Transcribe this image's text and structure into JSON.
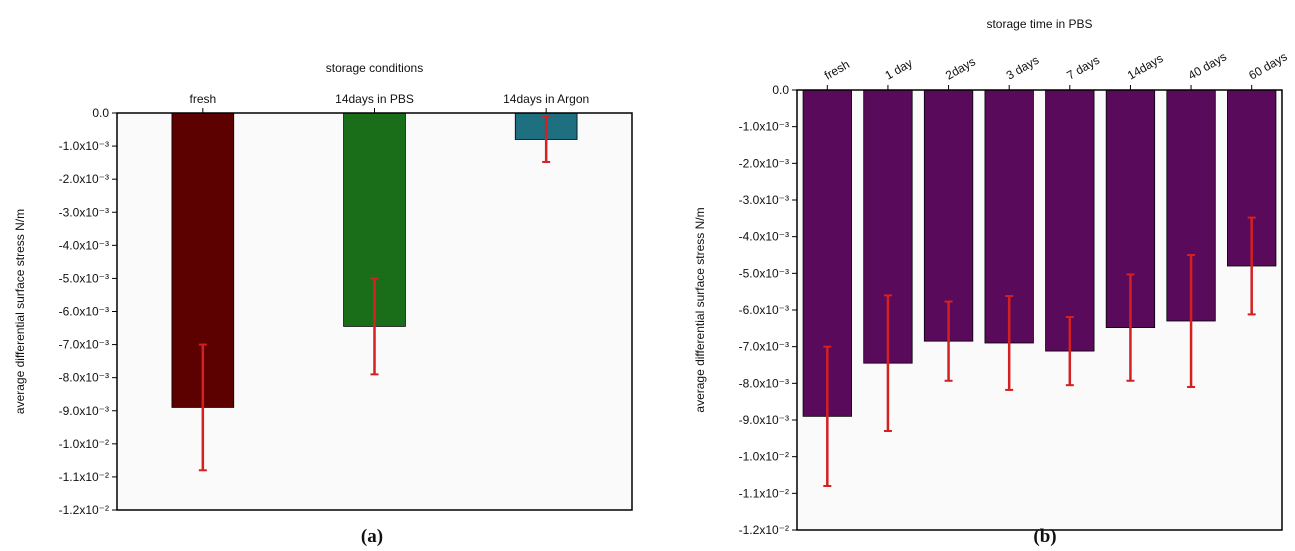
{
  "chart_data": [
    {
      "type": "bar",
      "xlabel": "storage conditions",
      "ylabel": "average differential surface stress N/m",
      "caption": "(a)",
      "categories": [
        "fresh",
        "14days  in PBS",
        "14days in Argon"
      ],
      "values": [
        -0.0089,
        -0.00645,
        -0.0008
      ],
      "errors": [
        0.0019,
        0.00145,
        0.00068
      ],
      "colors": [
        "#5c0000",
        "#1a6e1a",
        "#1e6f80"
      ],
      "error_color": "#d42020",
      "ylim": [
        -0.012,
        0
      ],
      "yticks": [
        {
          "value": 0,
          "label": "0.0"
        },
        {
          "value": -0.001,
          "label": "-1.0x10⁻³"
        },
        {
          "value": -0.002,
          "label": "-2.0x10⁻³"
        },
        {
          "value": -0.003,
          "label": "-3.0x10⁻³"
        },
        {
          "value": -0.004,
          "label": "-4.0x10⁻³"
        },
        {
          "value": -0.005,
          "label": "-5.0x10⁻³"
        },
        {
          "value": -0.006,
          "label": "-6.0x10⁻³"
        },
        {
          "value": -0.007,
          "label": "-7.0x10⁻³"
        },
        {
          "value": -0.008,
          "label": "-8.0x10⁻³"
        },
        {
          "value": -0.009,
          "label": "-9.0x10⁻³"
        },
        {
          "value": -0.01,
          "label": "-1.0x10⁻²"
        },
        {
          "value": -0.011,
          "label": "-1.1x10⁻²"
        },
        {
          "value": -0.012,
          "label": "-1.2x10⁻²"
        }
      ]
    },
    {
      "type": "bar",
      "xlabel": "storage time in PBS",
      "ylabel": "average differential surface stress N/m",
      "caption": "(b)",
      "categories": [
        "fresh",
        "1 day",
        "2days",
        "3 days",
        "7 days",
        "14days",
        "40 days",
        "60 days"
      ],
      "values": [
        -0.0089,
        -0.00745,
        -0.00685,
        -0.0069,
        -0.00712,
        -0.00648,
        -0.0063,
        -0.0048
      ],
      "errors": [
        0.0019,
        0.00185,
        0.00108,
        0.00128,
        0.00093,
        0.00145,
        0.0018,
        0.00132
      ],
      "color": "#5a0a5a",
      "error_color": "#d42020",
      "ylim": [
        -0.012,
        0
      ],
      "yticks": [
        {
          "value": 0,
          "label": "0.0"
        },
        {
          "value": -0.001,
          "label": "-1.0x10⁻³"
        },
        {
          "value": -0.002,
          "label": "-2.0x10⁻³"
        },
        {
          "value": -0.003,
          "label": "-3.0x10⁻³"
        },
        {
          "value": -0.004,
          "label": "-4.0x10⁻³"
        },
        {
          "value": -0.005,
          "label": "-5.0x10⁻³"
        },
        {
          "value": -0.006,
          "label": "-6.0x10⁻³"
        },
        {
          "value": -0.007,
          "label": "-7.0x10⁻³"
        },
        {
          "value": -0.008,
          "label": "-8.0x10⁻³"
        },
        {
          "value": -0.009,
          "label": "-9.0x10⁻³"
        },
        {
          "value": -0.01,
          "label": "-1.0x10⁻²"
        },
        {
          "value": -0.011,
          "label": "-1.1x10⁻²"
        },
        {
          "value": -0.012,
          "label": "-1.2x10⁻²"
        }
      ]
    }
  ]
}
